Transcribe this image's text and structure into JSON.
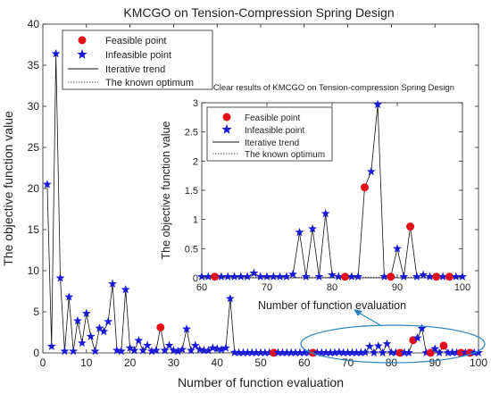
{
  "chart_data": [
    {
      "type": "scatter",
      "title": "KMCGO on Tension-Compression Spring Design",
      "xlabel": "Number of function evaluation",
      "ylabel": "The objective function value",
      "xlim": [
        0,
        100
      ],
      "ylim": [
        0,
        40
      ],
      "xticks": [
        0,
        10,
        20,
        30,
        40,
        50,
        60,
        70,
        80,
        90,
        100
      ],
      "yticks": [
        0,
        5,
        10,
        15,
        20,
        25,
        30,
        35,
        40
      ],
      "legend_position": "top-left",
      "series": [
        {
          "name": "Feasible point",
          "marker": "circle",
          "color": "#e3101a",
          "x": [
            27,
            53,
            62,
            82,
            85,
            89,
            92,
            96,
            98
          ],
          "y": [
            3.1,
            0.02,
            0.02,
            0.02,
            1.55,
            0.02,
            0.88,
            0.02,
            0.02
          ]
        },
        {
          "name": "Infeasible point",
          "marker": "star",
          "color": "#1a1ad6",
          "x": [],
          "y": []
        },
        {
          "name": "Iterative trend",
          "style": "solid",
          "color": "#111111"
        },
        {
          "name": "The known optimum",
          "style": "dotted",
          "color": "#555555",
          "value": 0.0127
        }
      ],
      "trend": {
        "x": [
          1,
          2,
          3,
          4,
          5,
          6,
          7,
          8,
          9,
          10,
          11,
          12,
          13,
          14,
          15,
          16,
          17,
          18,
          19,
          20,
          21,
          22,
          23,
          24,
          25,
          26,
          27,
          28,
          29,
          30,
          31,
          32,
          33,
          34,
          35,
          36,
          37,
          38,
          39,
          40,
          41,
          42,
          43,
          44,
          45,
          46,
          47,
          48,
          49,
          50,
          51,
          52,
          53,
          54,
          55,
          56,
          57,
          58,
          59,
          60,
          61,
          62,
          63,
          64,
          65,
          66,
          67,
          68,
          69,
          70,
          71,
          72,
          73,
          74,
          75,
          76,
          77,
          78,
          79,
          80,
          81,
          82,
          83,
          84,
          85,
          86,
          87,
          88,
          89,
          90,
          91,
          92,
          93,
          94,
          95,
          96,
          97,
          98,
          99,
          100
        ],
        "y": [
          20.5,
          0.8,
          36.4,
          9.1,
          0.2,
          6.8,
          0.2,
          3.9,
          1.2,
          4.8,
          2.0,
          0.2,
          3.0,
          2.6,
          3.8,
          8.4,
          0.3,
          0.2,
          7.7,
          0.6,
          0.3,
          1.5,
          0.3,
          0.9,
          0.2,
          0.3,
          3.1,
          0.3,
          0.9,
          0.3,
          0.2,
          0.4,
          2.9,
          0.3,
          0.9,
          0.4,
          0.3,
          0.3,
          0.6,
          0.5,
          0.4,
          0.6,
          6.6,
          0.05,
          0.02,
          0.02,
          0.02,
          0.02,
          0.02,
          0.02,
          0.02,
          0.02,
          0.02,
          0.02,
          0.02,
          0.02,
          0.02,
          0.02,
          0.02,
          0.02,
          0.02,
          0.02,
          0.02,
          0.02,
          0.02,
          0.02,
          0.02,
          0.08,
          0.02,
          0.02,
          0.02,
          0.02,
          0.02,
          0.06,
          0.78,
          0.02,
          0.84,
          0.02,
          1.1,
          0.05,
          0.02,
          0.02,
          0.02,
          0.02,
          1.55,
          1.82,
          2.97,
          0.02,
          0.02,
          0.5,
          0.02,
          0.88,
          0.02,
          0.05,
          0.02,
          0.02,
          0.02,
          0.02,
          0.02,
          0.02
        ]
      }
    },
    {
      "type": "scatter",
      "title": "Clear results of KMCGO on Tension-compression Spring Design",
      "xlabel": "Number of function evaluation",
      "ylabel": "The objective function value",
      "xlim": [
        60,
        100
      ],
      "ylim": [
        0,
        3
      ],
      "xticks": [
        60,
        70,
        80,
        90,
        100
      ],
      "yticks": [
        0,
        0.5,
        1,
        1.5,
        2,
        2.5,
        3
      ],
      "legend_position": "top-left",
      "series_names": [
        "Feasible point",
        "Infeasible point",
        "Iterative trend",
        "The known optimum"
      ],
      "note": ""
    }
  ]
}
